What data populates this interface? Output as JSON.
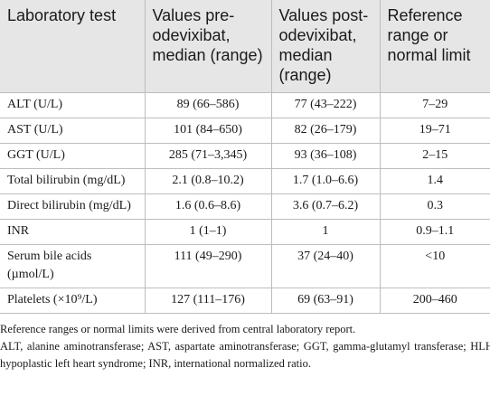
{
  "table": {
    "header": [
      "Laboratory test",
      "Values pre-odevixibat, median (range)",
      "Values post-odevixibat, median (range)",
      "Reference range or normal limit"
    ],
    "rows": [
      [
        "ALT (U/L)",
        "89 (66–586)",
        "77 (43–222)",
        "7–29"
      ],
      [
        "AST (U/L)",
        "101 (84–650)",
        "82 (26–179)",
        "19–71"
      ],
      [
        "GGT (U/L)",
        "285 (71–3,345)",
        "93 (36–108)",
        "2–15"
      ],
      [
        "Total bilirubin (mg/dL)",
        "2.1 (0.8–10.2)",
        "1.7 (1.0–6.6)",
        "1.4"
      ],
      [
        "Direct bilirubin (mg/dL)",
        "1.6 (0.6–8.6)",
        "3.6 (0.7–6.2)",
        "0.3"
      ],
      [
        "INR",
        "1 (1–1)",
        "1",
        "0.9–1.1"
      ],
      [
        "Serum bile acids (µmol/L)",
        "111 (49–290)",
        "37 (24–40)",
        "<10"
      ],
      [
        "Platelets (×10⁹/L)",
        "127 (111–176)",
        "69 (63–91)",
        "200–460"
      ]
    ]
  },
  "notes": [
    "Reference ranges or normal limits were derived from central laboratory report.",
    "ALT, alanine aminotransferase; AST, aspartate aminotransferase; GGT, gamma-glutamyl transferase; HLHS, hypoplastic left heart syndrome; INR, international normalized ratio."
  ]
}
